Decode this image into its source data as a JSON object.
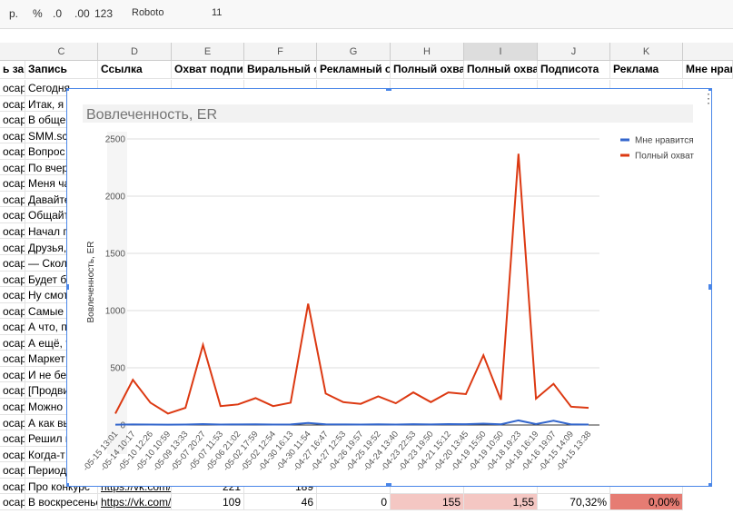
{
  "toolbar": {
    "items": [
      "р.",
      "%",
      ".0",
      ".00",
      "123",
      "Roboto",
      "11"
    ]
  },
  "sheet": {
    "column_letters": [
      "C",
      "D",
      "E",
      "F",
      "G",
      "H",
      "I",
      "J",
      "K"
    ],
    "header": [
      "ь зап",
      "Запись",
      "Ссылка",
      "Охват подписч",
      "Виральный ох",
      "Рекламный ох",
      "Полный охват",
      "Полный охват",
      "Подписота",
      "Реклама",
      "Мне нрав"
    ],
    "rows": [
      {
        "b": "осаре",
        "c": "Сегодня"
      },
      {
        "b": "осаре",
        "c": "Итак, я"
      },
      {
        "b": "осаре",
        "c": "В общем"
      },
      {
        "b": "осаре",
        "c": "SMM.sc"
      },
      {
        "b": "осаре",
        "c": "Вопрос"
      },
      {
        "b": "осаре",
        "c": "По вчер"
      },
      {
        "b": "осаре",
        "c": "Меня ча"
      },
      {
        "b": "осаре",
        "c": "Давайте"
      },
      {
        "b": "осаре",
        "c": "Общайт"
      },
      {
        "b": "осаре",
        "c": "Начал г"
      },
      {
        "b": "осаре",
        "c": "Друзья,"
      },
      {
        "b": "осаре",
        "c": "— Сколь"
      },
      {
        "b": "осаре",
        "c": "Будет б"
      },
      {
        "b": "осаре",
        "c": "Ну смот"
      },
      {
        "b": "осаре",
        "c": "Самые"
      },
      {
        "b": "осаре",
        "c": "А что, п"
      },
      {
        "b": "осаре",
        "c": "А ещё, т"
      },
      {
        "b": "осаре",
        "c": "Маркет"
      },
      {
        "b": "осаре",
        "c": "И не бе"
      },
      {
        "b": "осаре",
        "c": "[Продви"
      },
      {
        "b": "осаре",
        "c": "Можно"
      },
      {
        "b": "осаре",
        "c": "А как вы"
      },
      {
        "b": "осаре",
        "c": "Решил н"
      },
      {
        "b": "осаре",
        "c": "Когда-т"
      },
      {
        "b": "осаре",
        "c": "Период"
      },
      {
        "b": "осаре",
        "c": "Про конкурс",
        "d": "https://vk.com/",
        "e": "221",
        "f": "189"
      },
      {
        "b": "осаре",
        "c": "В воскресенье",
        "d": "https://vk.com/",
        "e": "109",
        "f": "46",
        "g": "0",
        "h": "155",
        "i": "1,55",
        "j": "70,32%",
        "k": "0,00%"
      }
    ]
  },
  "chart_data": {
    "type": "line",
    "title": "Вовлеченность, ER",
    "y_label": "Вовлеченность, ER",
    "categories": [
      "-05-15 13:01",
      "-05-14 10:17",
      "-05-10 12:26",
      "-05-10 10:59",
      "-05-09 13:33",
      "-05-07 20:27",
      "-05-07 11:53",
      "-05-06 21:02",
      "-05-02 17:59",
      "-05-02 12:54",
      "-04-30 16:13",
      "-04-30 11:54",
      "-04-27 16:47",
      "-04-27 12:53",
      "-04-26 19:57",
      "-04-25 19:52",
      "-04-24 13:40",
      "-04-23 22:53",
      "-04-23 19:50",
      "-04-21 15:12",
      "-04-20 13:45",
      "-04-19 15:50",
      "-04-19 10:50",
      "-04-18 19:23",
      "-04-18 16:19",
      "-04-16 19:07",
      "-04-15 14:09",
      "-04-15 13:38"
    ],
    "series": [
      {
        "name": "Мне нравится",
        "color": "#3366cc",
        "values": [
          3,
          5,
          4,
          3,
          4,
          8,
          4,
          5,
          6,
          4,
          5,
          18,
          6,
          5,
          4,
          6,
          4,
          7,
          5,
          8,
          7,
          12,
          6,
          40,
          8,
          38,
          5,
          4
        ]
      },
      {
        "name": "Полный охват",
        "color": "#dc3912",
        "values": [
          100,
          395,
          195,
          100,
          150,
          700,
          165,
          180,
          235,
          165,
          195,
          1060,
          275,
          200,
          185,
          250,
          190,
          285,
          200,
          285,
          270,
          610,
          220,
          2370,
          230,
          360,
          160,
          150
        ]
      }
    ],
    "ylim": [
      0,
      2500
    ],
    "yticks": [
      0,
      500,
      1000,
      1500,
      2000,
      2500
    ],
    "grid": true,
    "legend": "right"
  }
}
